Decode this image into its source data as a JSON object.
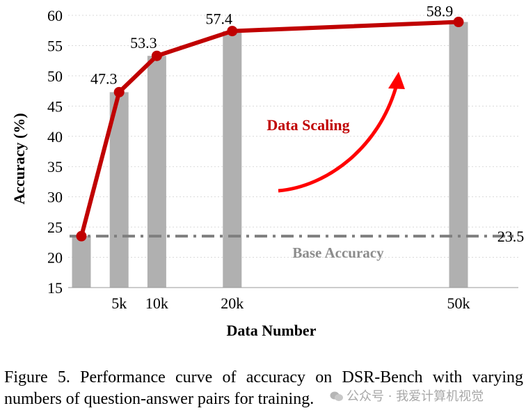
{
  "chart_data": {
    "type": "bar+line",
    "ylabel": "Accuracy (%)",
    "xlabel": "Data Number",
    "ylim": [
      15,
      60
    ],
    "yticks": [
      15,
      20,
      25,
      30,
      35,
      40,
      45,
      50,
      55,
      60
    ],
    "grid": "horizontal",
    "x": [
      0,
      5000,
      10000,
      20000,
      50000
    ],
    "x_tick_labels": [
      "",
      "5k",
      "10k",
      "20k",
      "50k"
    ],
    "bars": [
      23.5,
      47.3,
      53.3,
      57.4,
      58.9
    ],
    "line": [
      23.5,
      47.3,
      53.3,
      57.4,
      58.9
    ],
    "point_labels": [
      "",
      "47.3",
      "53.3",
      "57.4",
      "58.9"
    ],
    "baseline": {
      "value": 23.5,
      "value_label": "23.5",
      "label": "Base Accuracy"
    },
    "annotation": "Data Scaling",
    "colors": {
      "line": "#c00000",
      "bar": "#b0b0b0",
      "baseline": "#7f7f7f",
      "arrow": "#ff0000",
      "annotation": "#c00000",
      "base_label": "#8c8c8c"
    }
  },
  "caption": "Figure 5.  Performance curve of accuracy on DSR-Bench with varying numbers of question-answer pairs for training.",
  "watermark": "公众号 · 我爱计算机视觉"
}
